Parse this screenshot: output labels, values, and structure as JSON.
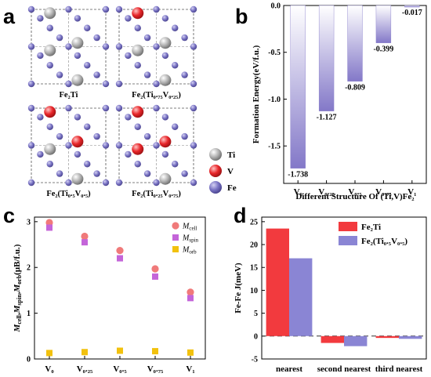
{
  "labels": {
    "a": "a",
    "b": "b",
    "c": "c",
    "d": "d"
  },
  "structures": {
    "captions": [
      {
        "id": "fe2ti",
        "text": "Fe₂Ti"
      },
      {
        "id": "ti075",
        "text": "Fe₂(Ti₀.₇₅V₀.₂₅)"
      },
      {
        "id": "ti05",
        "text": "Fe₂(Ti₀.₅V₀.₅)"
      },
      {
        "id": "ti025",
        "text": "Fe₂(Ti₀.₂₅V₀.₇₅)"
      }
    ],
    "legend": [
      {
        "name": "Ti",
        "color": "#b4b4b4"
      },
      {
        "name": "V",
        "color": "#e8262a"
      },
      {
        "name": "Fe",
        "color": "#7a74c4"
      }
    ]
  },
  "chart_data": [
    {
      "panel": "b",
      "type": "bar",
      "categories": [
        "V₀",
        "V₀.₂₅",
        "V₀.₅",
        "V₀.₇₅",
        "V₁"
      ],
      "values": [
        -1.738,
        -1.127,
        -0.809,
        -0.399,
        -0.017
      ],
      "value_labels": [
        "-1.738",
        "-1.127",
        "-0.809",
        "-0.399",
        "-0.017"
      ],
      "xlabel": "Different Structure Of (Ti,V)Fe₂",
      "ylabel": "Formation Energy(eV/f.u.)",
      "ylim": [
        -1.9,
        0.0
      ],
      "yticks": [
        0.0,
        -0.5,
        -1.0,
        -1.5
      ],
      "ytick_labels": [
        "0.0",
        "-0.5",
        "-1.0",
        "-1.5"
      ],
      "xaxis_position": "top",
      "bar_gradient": [
        "#ffffff",
        "#8378c8"
      ]
    },
    {
      "panel": "c",
      "type": "scatter",
      "categories": [
        "V₀",
        "V₀.₂₅",
        "V₀.₅",
        "V₀.₇₅",
        "V₁"
      ],
      "ylabel": "M_cell, M_spin, M_orb (μB/f.u.)",
      "ylim": [
        0,
        3.1
      ],
      "yticks": [
        0,
        1,
        2,
        3
      ],
      "ytick_labels": [
        "0",
        "1",
        "2",
        "3"
      ],
      "legend_position": "top-right",
      "series": [
        {
          "name": "M",
          "sub": "cell",
          "marker": "circle",
          "color": "#f07a7a",
          "values": [
            2.98,
            2.68,
            2.37,
            1.97,
            1.46
          ]
        },
        {
          "name": "M",
          "sub": "spin",
          "marker": "square",
          "color": "#c465d9",
          "values": [
            2.87,
            2.55,
            2.2,
            1.8,
            1.33
          ]
        },
        {
          "name": "M",
          "sub": "orb",
          "marker": "square",
          "color": "#f2c10d",
          "values": [
            0.13,
            0.15,
            0.18,
            0.17,
            0.14
          ]
        }
      ]
    },
    {
      "panel": "d",
      "type": "bar",
      "categories": [
        "nearest",
        "second nearest",
        "third nearest"
      ],
      "ylabel": "Fe-Fe J(meV)",
      "ylim": [
        -5,
        26
      ],
      "yticks": [
        -5,
        0,
        5,
        10,
        15,
        20,
        25
      ],
      "ytick_labels": [
        "-5",
        "0",
        "5",
        "10",
        "15",
        "20",
        "25"
      ],
      "legend_position": "top-right",
      "series": [
        {
          "name": "Fe₂Ti",
          "color": "#f23a3e",
          "values": [
            23.5,
            -1.5,
            -0.4
          ]
        },
        {
          "name": "Fe₂(Ti₀.₅V₀.₅)",
          "color": "#8a85d4",
          "values": [
            17.0,
            -2.2,
            -0.6
          ]
        }
      ]
    }
  ]
}
